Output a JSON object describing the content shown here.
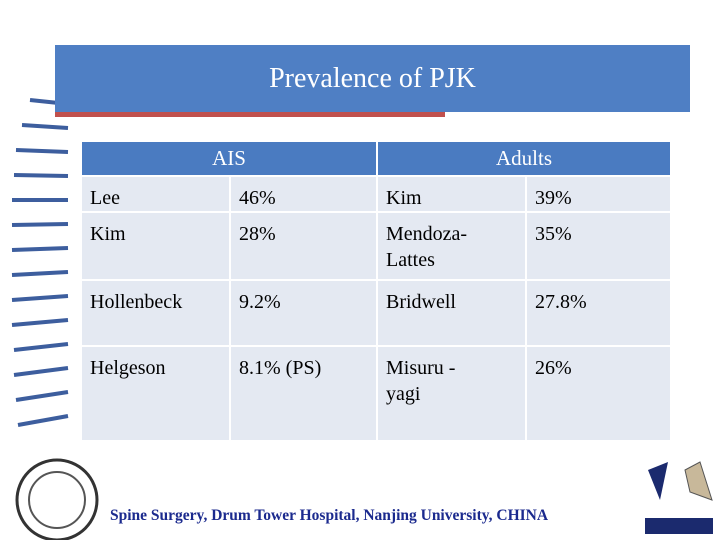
{
  "header": {
    "title": "Prevalence of PJK"
  },
  "table": {
    "groups": [
      "AIS",
      "Adults"
    ],
    "rows": [
      [
        "Lee",
        "46%",
        "Kim",
        "39%"
      ],
      [
        "Kim",
        "28%",
        "Mendoza-Lattes",
        "35%"
      ],
      [
        "Hollenbeck",
        "9.2%",
        "Bridwell",
        "27.8%"
      ],
      [
        "Helgeson",
        "8.1% (PS)",
        "Misuru -yagi",
        "26%"
      ]
    ]
  },
  "footer": {
    "text": "Spine Surgery, Drum Tower Hospital, Nanjing University, CHINA"
  }
}
